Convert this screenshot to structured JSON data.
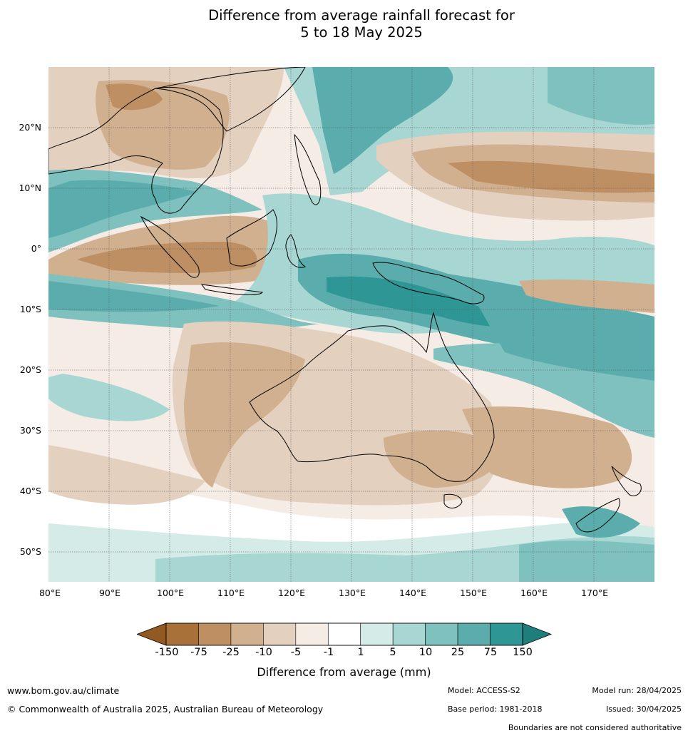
{
  "title": {
    "line1": "Difference from average rainfall forecast for",
    "line2": "5 to 18 May 2025"
  },
  "map": {
    "lat_labels": [
      "20°N",
      "10°N",
      "0°",
      "10°S",
      "20°S",
      "30°S",
      "40°S",
      "50°S"
    ],
    "lon_labels": [
      "80°E",
      "90°E",
      "100°E",
      "110°E",
      "120°E",
      "130°E",
      "140°E",
      "150°E",
      "160°E",
      "170°E"
    ],
    "lon_range": [
      80,
      180
    ],
    "lat_range": [
      -55,
      30
    ]
  },
  "legend": {
    "title": "Difference from average (mm)",
    "ticks": [
      "-150",
      "-75",
      "-25",
      "-10",
      "-5",
      "-1",
      "1",
      "5",
      "10",
      "25",
      "75",
      "150"
    ],
    "colors": [
      "#a8713a",
      "#be8f63",
      "#d1b08f",
      "#e4d0bf",
      "#f5ece6",
      "#ffffff",
      "#d4ebe8",
      "#a8d6d3",
      "#7ec1bf",
      "#5aadac",
      "#2e9694"
    ],
    "extend_low_color": "#925a22",
    "extend_high_color": "#1f7d7b"
  },
  "footer": {
    "website": "www.bom.gov.au/climate",
    "copyright": "© Commonwealth of Australia 2025, Australian Bureau of Meteorology",
    "model": "Model: ACCESS-S2",
    "base_period": "Base period: 1981-2018",
    "model_run": "Model run: 28/04/2025",
    "issued": "Issued: 30/04/2025",
    "disclaimer": "Boundaries are not considered authoritative"
  }
}
